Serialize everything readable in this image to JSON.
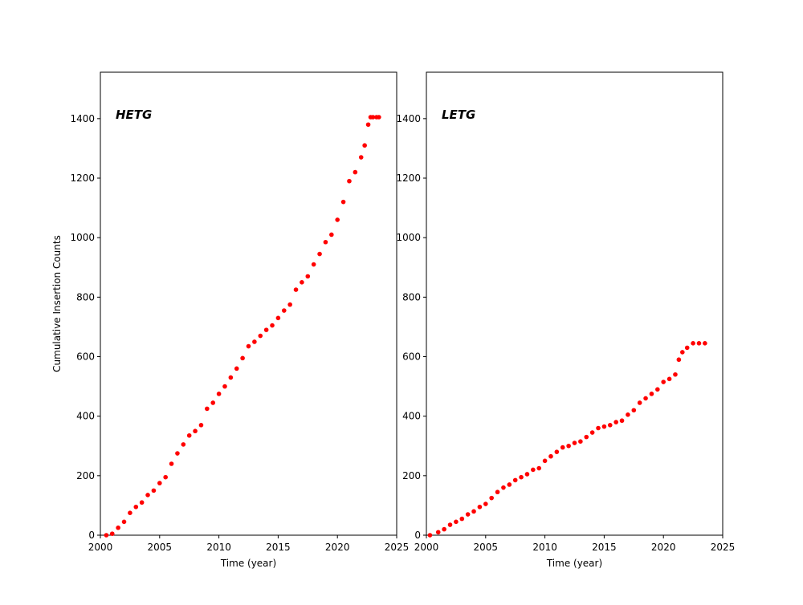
{
  "chart_data": [
    {
      "type": "scatter",
      "title": "HETG",
      "xlabel": "Time (year)",
      "ylabel": "Cumulative Insertion Counts",
      "color": "#ff0000",
      "xlim": [
        2000,
        2025
      ],
      "ylim": [
        0,
        1556
      ],
      "xticks": [
        2000,
        2005,
        2010,
        2015,
        2020,
        2025
      ],
      "yticks": [
        0,
        200,
        400,
        600,
        800,
        1000,
        1200,
        1400
      ],
      "x": [
        2000.5,
        2001,
        2001.5,
        2002,
        2002.5,
        2003,
        2003.5,
        2004,
        2004.5,
        2005,
        2005.5,
        2006,
        2006.5,
        2007,
        2007.5,
        2008,
        2008.5,
        2009,
        2009.5,
        2010,
        2010.5,
        2011,
        2011.5,
        2012,
        2012.5,
        2013,
        2013.5,
        2014,
        2014.5,
        2015,
        2015.5,
        2016,
        2016.5,
        2017,
        2017.5,
        2018,
        2018.5,
        2019,
        2019.5,
        2020,
        2020.5,
        2021,
        2021.5,
        2022,
        2022.3,
        2022.6,
        2022.8,
        2023,
        2023.3,
        2023.5
      ],
      "values": [
        0,
        5,
        25,
        45,
        75,
        95,
        110,
        135,
        150,
        175,
        195,
        240,
        275,
        305,
        335,
        350,
        370,
        425,
        445,
        475,
        500,
        530,
        560,
        595,
        635,
        650,
        670,
        690,
        705,
        730,
        755,
        775,
        825,
        850,
        870,
        910,
        945,
        985,
        1010,
        1060,
        1120,
        1190,
        1220,
        1270,
        1310,
        1380,
        1405,
        1405,
        1405,
        1405
      ]
    },
    {
      "type": "scatter",
      "title": "LETG",
      "xlabel": "Time (year)",
      "color": "#ff0000",
      "xlim": [
        2000,
        2025
      ],
      "ylim": [
        0,
        1556
      ],
      "xticks": [
        2000,
        2005,
        2010,
        2015,
        2020,
        2025
      ],
      "yticks": [
        0,
        200,
        400,
        600,
        800,
        1000,
        1200,
        1400
      ],
      "x": [
        2000.3,
        2001,
        2001.5,
        2002,
        2002.5,
        2003,
        2003.5,
        2004,
        2004.5,
        2005,
        2005.5,
        2006,
        2006.5,
        2007,
        2007.5,
        2008,
        2008.5,
        2009,
        2009.5,
        2010,
        2010.5,
        2011,
        2011.5,
        2012,
        2012.5,
        2013,
        2013.5,
        2014,
        2014.5,
        2015,
        2015.5,
        2016,
        2016.5,
        2017,
        2017.5,
        2018,
        2018.5,
        2019,
        2019.5,
        2020,
        2020.5,
        2021,
        2021.3,
        2021.6,
        2022,
        2022.5,
        2023,
        2023.5
      ],
      "values": [
        0,
        10,
        20,
        35,
        45,
        55,
        70,
        80,
        95,
        105,
        125,
        145,
        160,
        170,
        185,
        195,
        205,
        220,
        225,
        250,
        265,
        280,
        295,
        300,
        310,
        315,
        330,
        345,
        360,
        365,
        370,
        380,
        385,
        405,
        420,
        445,
        460,
        475,
        490,
        515,
        525,
        540,
        590,
        615,
        630,
        645,
        645,
        645
      ]
    }
  ]
}
